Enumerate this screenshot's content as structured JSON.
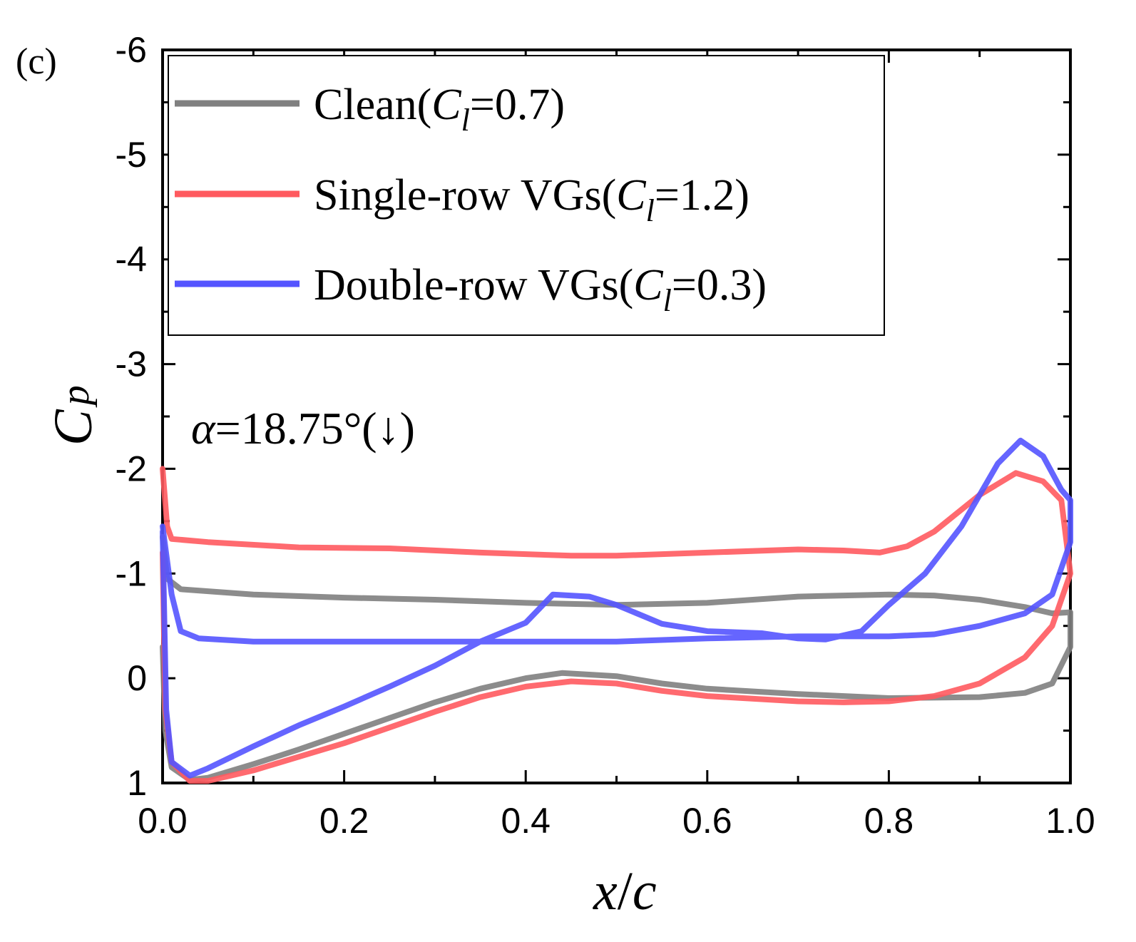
{
  "chart_data": {
    "type": "line",
    "panel_label": "(c)",
    "annotation": {
      "symbol": "α",
      "text": "=18.75°(↓)"
    },
    "xlabel": {
      "var": "x",
      "sep": "/",
      "var2": "c"
    },
    "ylabel": {
      "var": "C",
      "sub": "p"
    },
    "xlim": [
      0,
      1
    ],
    "ylim": [
      -6,
      1
    ],
    "y_inverted": true,
    "x_ticks": [
      0.0,
      0.2,
      0.4,
      0.6,
      0.8,
      1.0
    ],
    "x_tick_labels": [
      "0.0",
      "0.2",
      "0.4",
      "0.6",
      "0.8",
      "1.0"
    ],
    "y_ticks": [
      -6,
      -5,
      -4,
      -3,
      -2,
      -1,
      0,
      1
    ],
    "y_tick_labels": [
      "-6",
      "-5",
      "-4",
      "-3",
      "-2",
      "-1",
      "0",
      "1"
    ],
    "legend_position": "top-left",
    "series": [
      {
        "name": "Clean",
        "legend_prefix": "Clean(",
        "legend_cl_sym": "C",
        "legend_cl_sub": "l",
        "legend_cl_value": "=0.7)",
        "color": "#808080",
        "suction": [
          [
            0.0,
            -1.35
          ],
          [
            0.005,
            -0.95
          ],
          [
            0.02,
            -0.85
          ],
          [
            0.1,
            -0.8
          ],
          [
            0.2,
            -0.77
          ],
          [
            0.3,
            -0.75
          ],
          [
            0.4,
            -0.72
          ],
          [
            0.5,
            -0.7
          ],
          [
            0.6,
            -0.72
          ],
          [
            0.7,
            -0.78
          ],
          [
            0.8,
            -0.8
          ],
          [
            0.85,
            -0.79
          ],
          [
            0.9,
            -0.75
          ],
          [
            0.95,
            -0.68
          ],
          [
            0.98,
            -0.62
          ],
          [
            1.0,
            -0.63
          ]
        ],
        "pressure": [
          [
            0.0,
            -0.3
          ],
          [
            0.003,
            0.5
          ],
          [
            0.01,
            0.85
          ],
          [
            0.03,
            0.97
          ],
          [
            0.05,
            0.95
          ],
          [
            0.1,
            0.82
          ],
          [
            0.15,
            0.68
          ],
          [
            0.2,
            0.53
          ],
          [
            0.25,
            0.38
          ],
          [
            0.3,
            0.23
          ],
          [
            0.35,
            0.1
          ],
          [
            0.4,
            0.0
          ],
          [
            0.44,
            -0.05
          ],
          [
            0.5,
            -0.02
          ],
          [
            0.55,
            0.05
          ],
          [
            0.6,
            0.1
          ],
          [
            0.7,
            0.15
          ],
          [
            0.8,
            0.19
          ],
          [
            0.9,
            0.18
          ],
          [
            0.95,
            0.14
          ],
          [
            0.98,
            0.05
          ],
          [
            1.0,
            -0.3
          ]
        ]
      },
      {
        "name": "Single-row VGs",
        "legend_prefix": "Single-row VGs(",
        "legend_cl_sym": "C",
        "legend_cl_sub": "l",
        "legend_cl_value": "=1.2)",
        "color": "#ff5a5f",
        "suction": [
          [
            0.0,
            -2.0
          ],
          [
            0.005,
            -1.45
          ],
          [
            0.01,
            -1.33
          ],
          [
            0.05,
            -1.3
          ],
          [
            0.15,
            -1.25
          ],
          [
            0.25,
            -1.24
          ],
          [
            0.35,
            -1.2
          ],
          [
            0.45,
            -1.17
          ],
          [
            0.5,
            -1.17
          ],
          [
            0.6,
            -1.2
          ],
          [
            0.7,
            -1.23
          ],
          [
            0.75,
            -1.22
          ],
          [
            0.79,
            -1.2
          ],
          [
            0.82,
            -1.26
          ],
          [
            0.85,
            -1.4
          ],
          [
            0.9,
            -1.75
          ],
          [
            0.94,
            -1.96
          ],
          [
            0.97,
            -1.88
          ],
          [
            0.99,
            -1.7
          ],
          [
            1.0,
            -1.0
          ]
        ],
        "pressure": [
          [
            0.0,
            -1.2
          ],
          [
            0.003,
            0.3
          ],
          [
            0.01,
            0.8
          ],
          [
            0.03,
            0.98
          ],
          [
            0.05,
            0.98
          ],
          [
            0.1,
            0.88
          ],
          [
            0.15,
            0.75
          ],
          [
            0.2,
            0.62
          ],
          [
            0.25,
            0.47
          ],
          [
            0.3,
            0.32
          ],
          [
            0.35,
            0.18
          ],
          [
            0.4,
            0.08
          ],
          [
            0.45,
            0.03
          ],
          [
            0.5,
            0.05
          ],
          [
            0.55,
            0.12
          ],
          [
            0.6,
            0.17
          ],
          [
            0.7,
            0.22
          ],
          [
            0.75,
            0.23
          ],
          [
            0.8,
            0.22
          ],
          [
            0.85,
            0.17
          ],
          [
            0.9,
            0.05
          ],
          [
            0.95,
            -0.2
          ],
          [
            0.98,
            -0.5
          ],
          [
            1.0,
            -1.0
          ]
        ]
      },
      {
        "name": "Double-row VGs",
        "legend_prefix": "Double-row VGs(",
        "legend_cl_sym": "C",
        "legend_cl_sub": "l",
        "legend_cl_value": "=0.3)",
        "color": "#5454ff",
        "suction": [
          [
            0.0,
            -1.45
          ],
          [
            0.01,
            -0.8
          ],
          [
            0.02,
            -0.45
          ],
          [
            0.04,
            -0.38
          ],
          [
            0.1,
            -0.35
          ],
          [
            0.2,
            -0.35
          ],
          [
            0.3,
            -0.35
          ],
          [
            0.4,
            -0.35
          ],
          [
            0.5,
            -0.35
          ],
          [
            0.6,
            -0.38
          ],
          [
            0.7,
            -0.4
          ],
          [
            0.8,
            -0.4
          ],
          [
            0.85,
            -0.42
          ],
          [
            0.9,
            -0.5
          ],
          [
            0.95,
            -0.62
          ],
          [
            0.98,
            -0.8
          ],
          [
            1.0,
            -1.3
          ]
        ],
        "pressure": [
          [
            0.0,
            -1.4
          ],
          [
            0.004,
            0.3
          ],
          [
            0.01,
            0.8
          ],
          [
            0.03,
            0.93
          ],
          [
            0.05,
            0.86
          ],
          [
            0.1,
            0.65
          ],
          [
            0.15,
            0.45
          ],
          [
            0.2,
            0.27
          ],
          [
            0.25,
            0.08
          ],
          [
            0.3,
            -0.12
          ],
          [
            0.35,
            -0.35
          ],
          [
            0.4,
            -0.53
          ],
          [
            0.43,
            -0.8
          ],
          [
            0.47,
            -0.78
          ],
          [
            0.5,
            -0.7
          ],
          [
            0.55,
            -0.52
          ],
          [
            0.6,
            -0.45
          ],
          [
            0.66,
            -0.43
          ],
          [
            0.7,
            -0.38
          ],
          [
            0.73,
            -0.37
          ],
          [
            0.77,
            -0.45
          ],
          [
            0.8,
            -0.7
          ],
          [
            0.84,
            -1.0
          ],
          [
            0.88,
            -1.45
          ],
          [
            0.92,
            -2.05
          ],
          [
            0.945,
            -2.27
          ],
          [
            0.97,
            -2.12
          ],
          [
            0.99,
            -1.8
          ],
          [
            1.0,
            -1.7
          ]
        ]
      }
    ]
  }
}
